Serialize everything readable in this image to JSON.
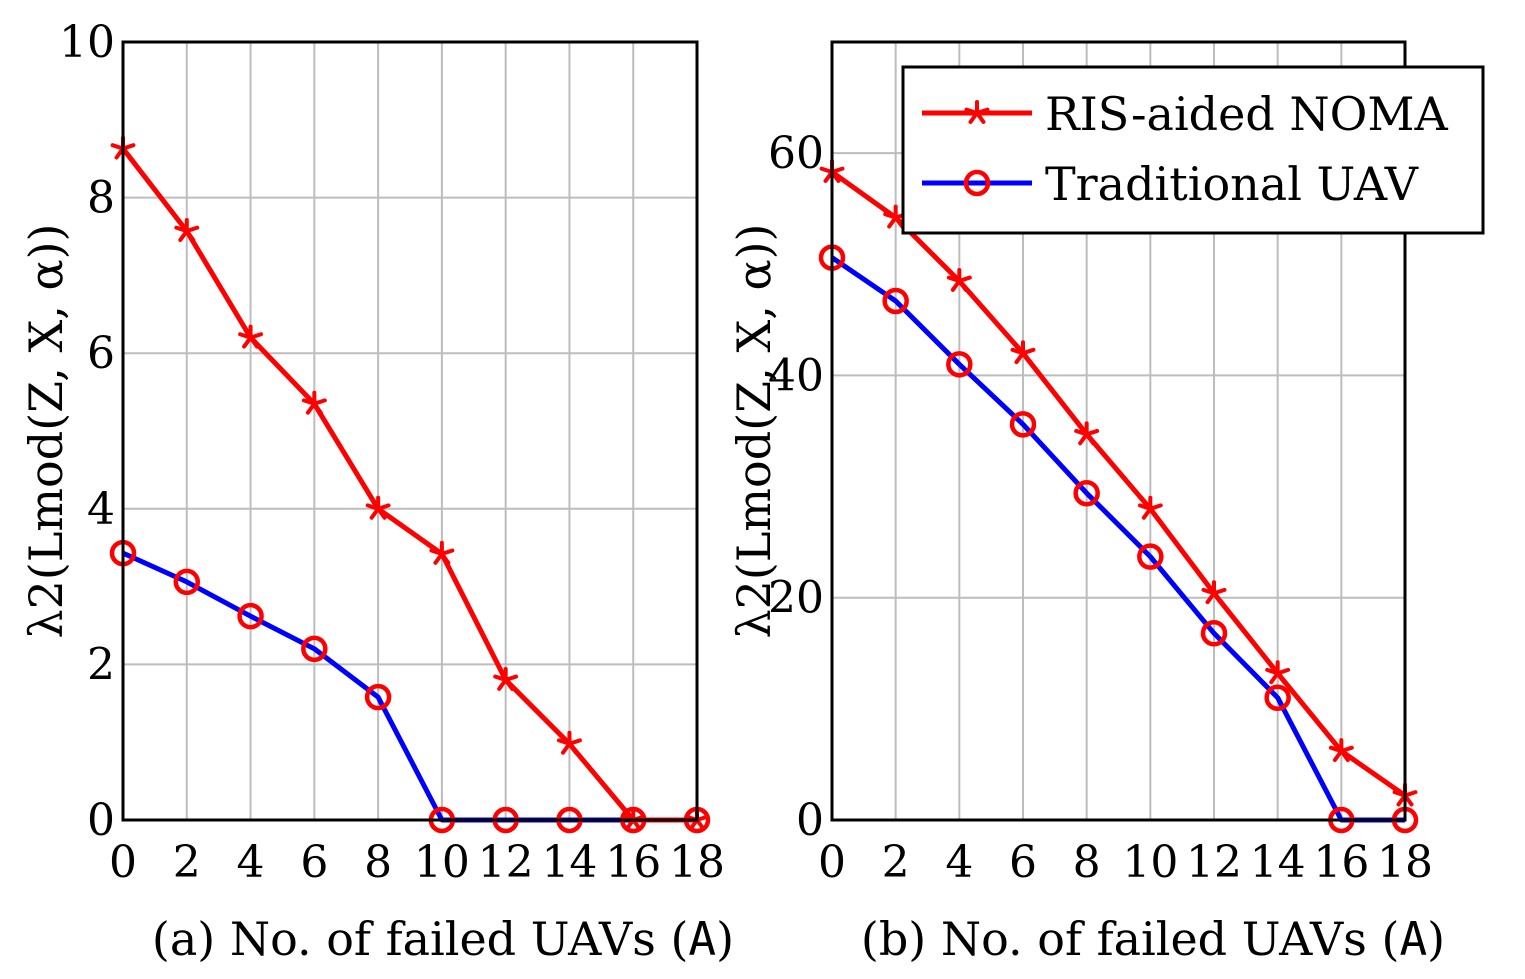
{
  "chart_data": [
    {
      "type": "line",
      "caption_prefix": "(a) No. of failed UAVs (",
      "caption_symbol": "A",
      "caption_suffix": ")",
      "ylabel": "λ2(Lmod(Z, X, α))",
      "xlim": [
        0,
        18
      ],
      "ylim": [
        0,
        10
      ],
      "x_ticks": [
        0,
        2,
        4,
        6,
        8,
        10,
        12,
        14,
        16,
        18
      ],
      "y_ticks": [
        0,
        2,
        4,
        6,
        8,
        10
      ],
      "grid": true,
      "series": [
        {
          "name": "RIS-aided NOMA",
          "color": "#ff0000",
          "marker": "star",
          "x": [
            0,
            2,
            4,
            6,
            8,
            10,
            12,
            14,
            16,
            18
          ],
          "values": [
            8.63,
            7.57,
            6.2,
            5.35,
            4.0,
            3.42,
            1.8,
            0.98,
            0.0,
            0.0
          ]
        },
        {
          "name": "Traditional UAV",
          "color": "#0000ff",
          "marker": "circle",
          "x": [
            0,
            2,
            4,
            6,
            8,
            10,
            12,
            14,
            16,
            18
          ],
          "values": [
            3.43,
            3.06,
            2.62,
            2.2,
            1.58,
            0.0,
            0.0,
            0.0,
            0.0,
            0.0
          ]
        }
      ]
    },
    {
      "type": "line",
      "caption_prefix": "(b) No. of failed UAVs (",
      "caption_symbol": "A",
      "caption_suffix": ")",
      "ylabel": "λ2(Lmod(Z, X, α))",
      "xlim": [
        0,
        18
      ],
      "ylim": [
        0,
        70
      ],
      "x_ticks": [
        0,
        2,
        4,
        6,
        8,
        10,
        12,
        14,
        16,
        18
      ],
      "y_ticks": [
        0,
        20,
        40,
        60
      ],
      "grid": true,
      "legend": {
        "position": "top-right",
        "entries": [
          "RIS-aided NOMA",
          "Traditional UAV"
        ]
      },
      "series": [
        {
          "name": "RIS-aided NOMA",
          "color": "#ff0000",
          "marker": "star",
          "x": [
            0,
            2,
            4,
            6,
            8,
            10,
            12,
            14,
            16,
            18
          ],
          "values": [
            58.3,
            54.2,
            48.5,
            42.0,
            34.7,
            28.0,
            20.4,
            13.2,
            6.2,
            2.2
          ]
        },
        {
          "name": "Traditional UAV",
          "color": "#0000ff",
          "marker": "circle",
          "x": [
            0,
            2,
            4,
            6,
            8,
            10,
            12,
            14,
            16,
            18
          ],
          "values": [
            50.6,
            46.7,
            41.0,
            35.6,
            29.4,
            23.7,
            16.8,
            11.0,
            0.0,
            0.0
          ]
        }
      ]
    }
  ]
}
